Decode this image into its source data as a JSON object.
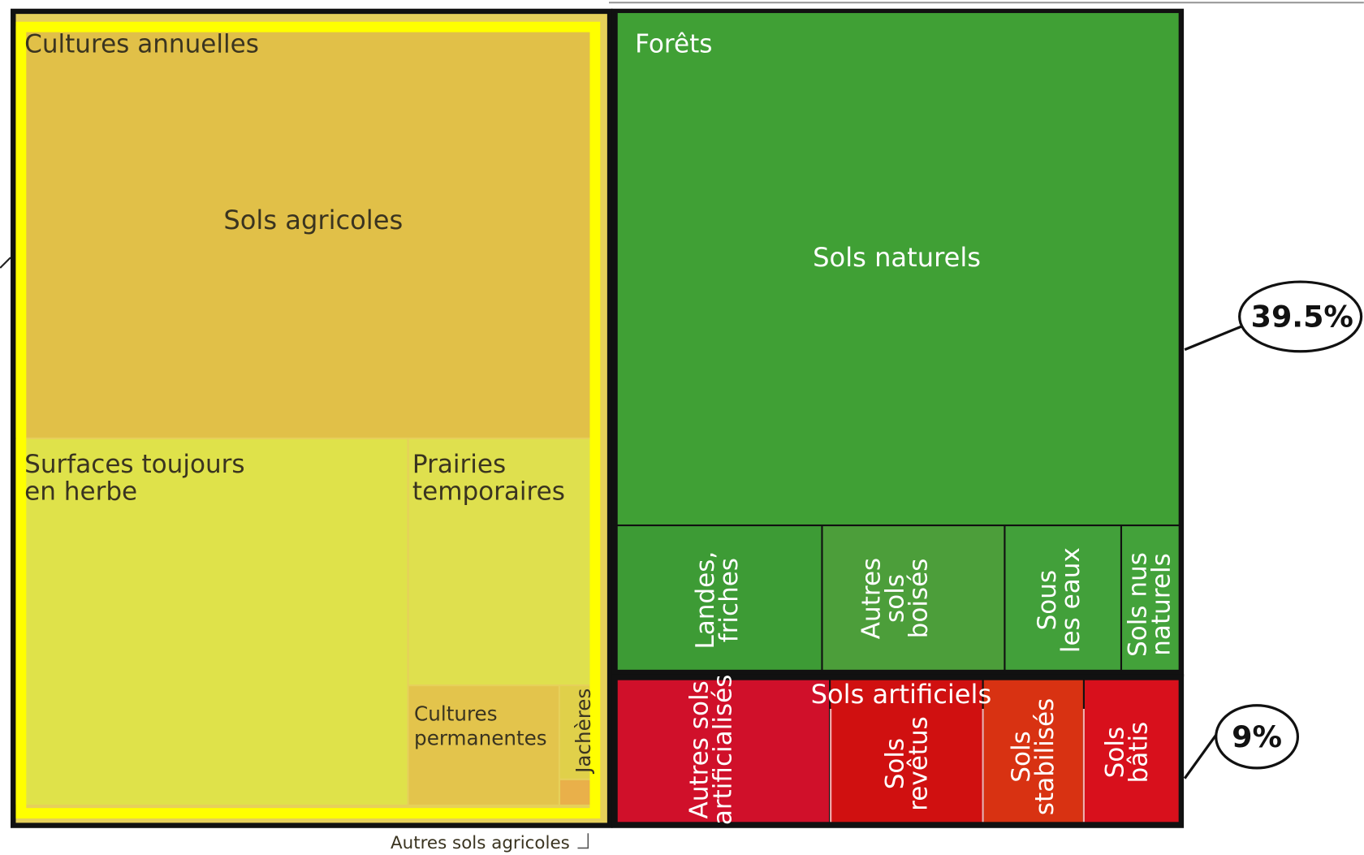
{
  "groups": [
    {
      "label": "Sols agricoles",
      "items": [
        {
          "label": [
            "Cultures annuelles"
          ]
        },
        {
          "label": [
            "Surfaces toujours",
            "en herbe"
          ]
        },
        {
          "label": [
            "Prairies",
            "temporaires"
          ]
        },
        {
          "label": [
            "Cultures",
            "permanentes"
          ]
        },
        {
          "label": [
            "Jachères"
          ]
        },
        {
          "label": [
            "Autres sols agricoles"
          ]
        }
      ]
    },
    {
      "label": "Sols naturels",
      "callout": "39.5%",
      "items": [
        {
          "label": [
            "Forêts"
          ]
        },
        {
          "label": [
            "Landes,",
            "friches"
          ]
        },
        {
          "label": [
            "Autres",
            "sols",
            "boisés"
          ]
        },
        {
          "label": [
            "Sous",
            "les eaux"
          ]
        },
        {
          "label": [
            "Sols nus",
            "naturels"
          ]
        }
      ]
    },
    {
      "label": "Sols artificiels",
      "callout": "9%",
      "items": [
        {
          "label": [
            "Autres sols",
            "artificialisés"
          ]
        },
        {
          "label": [
            "Sols",
            "revêtus"
          ]
        },
        {
          "label": [
            "Sols",
            "stabilisés"
          ]
        },
        {
          "label": [
            "Sols",
            "bâtis"
          ]
        }
      ]
    }
  ]
}
